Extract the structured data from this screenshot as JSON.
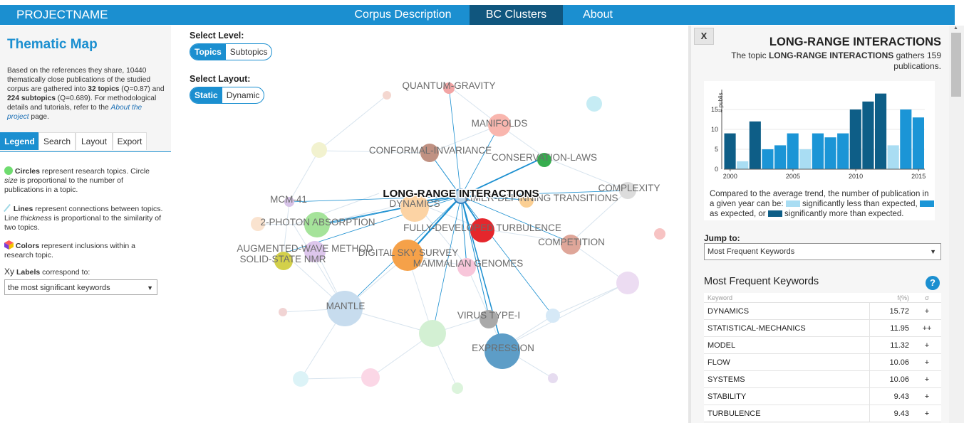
{
  "header": {
    "brand": "PROJECTNAME",
    "nav": [
      "Corpus Description",
      "BC Clusters",
      "About"
    ],
    "active": "BC Clusters"
  },
  "left": {
    "title": "Thematic Map",
    "desc_pre": "Based on the references they share, 10440 thematically close publications of the studied corpus are gathered into ",
    "desc_topics": "32 topics",
    "desc_mid1": " (Q=0.87) and ",
    "desc_subtopics": "224 subtopics",
    "desc_mid2": " (Q=0.689). For methodological details and tutorials, refer to the ",
    "desc_link": "About the project",
    "desc_post": " page.",
    "tabs": [
      "Legend",
      "Search",
      "Layout",
      "Export"
    ],
    "legend": {
      "circles_b": "Circles",
      "circles_1": " represent research topics. Circle ",
      "circles_i": "size",
      "circles_2": " is proportional to the number of publications in a topic.",
      "lines_b": "Lines",
      "lines_1": " represent connections between topics. Line ",
      "lines_i": "thickness",
      "lines_2": " is proportional to the similarity of two topics.",
      "colors_b": "Colors",
      "colors_1": " represent inclusions within a research topic.",
      "labels_icon": "Xy",
      "labels_b": "Labels",
      "labels_1": " correspond to:",
      "select": "the most significant keywords"
    }
  },
  "controls": {
    "level_label": "Select Level:",
    "level_options": [
      "Topics",
      "Subtopics"
    ],
    "layout_label": "Select Layout:",
    "layout_options": [
      "Static",
      "Dynamic"
    ]
  },
  "map": {
    "colors": {
      "line": "#1b8fd0"
    },
    "labels": {
      "quantum": "QUANTUM-GRAVITY",
      "manifolds": "MANIFOLDS",
      "conformal": "CONFORMAL-INVARIANCE",
      "conservation": "CONSERVATION-LAWS",
      "complexity": "COMPLEXITY",
      "mcm": "MCM-41",
      "dynamics": "DYNAMICS",
      "transitions": "LIMER-DEPINNING TRANSITIONS",
      "photon": "2-PHOTON ABSORPTION",
      "turbulence": "FULLY-DEVELOPED TURBULENCE",
      "competition": "COMPETITION",
      "augmented": "AUGMENTED-WAVE METHOD",
      "nmr": "SOLID-STATE NMR",
      "sky": "DIGITAL SKY SURVEY",
      "genomes": "MAMMALIAN GENOMES",
      "mantle": "MANTLE",
      "virus": "VIRUS TYPE-I",
      "expression": "EXPRESSION",
      "selected": "LONG-RANGE INTERACTIONS"
    }
  },
  "right": {
    "close": "X",
    "title": "LONG-RANGE INTERACTIONS",
    "sub_pre": "The topic ",
    "sub_topic": "LONG-RANGE INTERACTIONS",
    "sub_post": " gathers 159 publications.",
    "caption_1": "Compared to the average trend, the number of publication in a given year can be: ",
    "caption_less": " significantly less than expected,",
    "caption_as": " as expected, or ",
    "caption_more": " significantly more than expected.",
    "jump_label": "Jump to:",
    "jump_value": "Most Frequent Keywords",
    "kw_title": "Most Frequent Keywords",
    "help": "?",
    "kw_headers": [
      "Keyword",
      "f(%)",
      "σ"
    ],
    "keywords": [
      {
        "kw": "DYNAMICS",
        "f": "15.72",
        "s": "+"
      },
      {
        "kw": "STATISTICAL-MECHANICS",
        "f": "11.95",
        "s": "++"
      },
      {
        "kw": "MODEL",
        "f": "11.32",
        "s": "+"
      },
      {
        "kw": "FLOW",
        "f": "10.06",
        "s": "+"
      },
      {
        "kw": "SYSTEMS",
        "f": "10.06",
        "s": "+"
      },
      {
        "kw": "STABILITY",
        "f": "9.43",
        "s": "+"
      },
      {
        "kw": "TURBULENCE",
        "f": "9.43",
        "s": "+"
      }
    ]
  },
  "chart_data": {
    "type": "bar",
    "ylabel": "# publis",
    "ylim": [
      0,
      20
    ],
    "yticks": [
      0,
      5,
      10,
      15
    ],
    "xticks": [
      2000,
      2005,
      2010,
      2015
    ],
    "colors": {
      "less": "#a9ddf3",
      "expected": "#1b95d6",
      "more": "#0e5e87"
    },
    "bars": [
      {
        "year": 2000,
        "value": 9,
        "cat": "more"
      },
      {
        "year": 2001,
        "value": 2,
        "cat": "less"
      },
      {
        "year": 2002,
        "value": 12,
        "cat": "more"
      },
      {
        "year": 2003,
        "value": 5,
        "cat": "expected"
      },
      {
        "year": 2004,
        "value": 6,
        "cat": "expected"
      },
      {
        "year": 2005,
        "value": 9,
        "cat": "expected"
      },
      {
        "year": 2006,
        "value": 5,
        "cat": "less"
      },
      {
        "year": 2007,
        "value": 9,
        "cat": "expected"
      },
      {
        "year": 2008,
        "value": 8,
        "cat": "expected"
      },
      {
        "year": 2009,
        "value": 9,
        "cat": "expected"
      },
      {
        "year": 2010,
        "value": 15,
        "cat": "more"
      },
      {
        "year": 2011,
        "value": 17,
        "cat": "more"
      },
      {
        "year": 2012,
        "value": 19,
        "cat": "more"
      },
      {
        "year": 2013,
        "value": 6,
        "cat": "less"
      },
      {
        "year": 2014,
        "value": 15,
        "cat": "expected"
      },
      {
        "year": 2015,
        "value": 13,
        "cat": "expected"
      }
    ]
  }
}
